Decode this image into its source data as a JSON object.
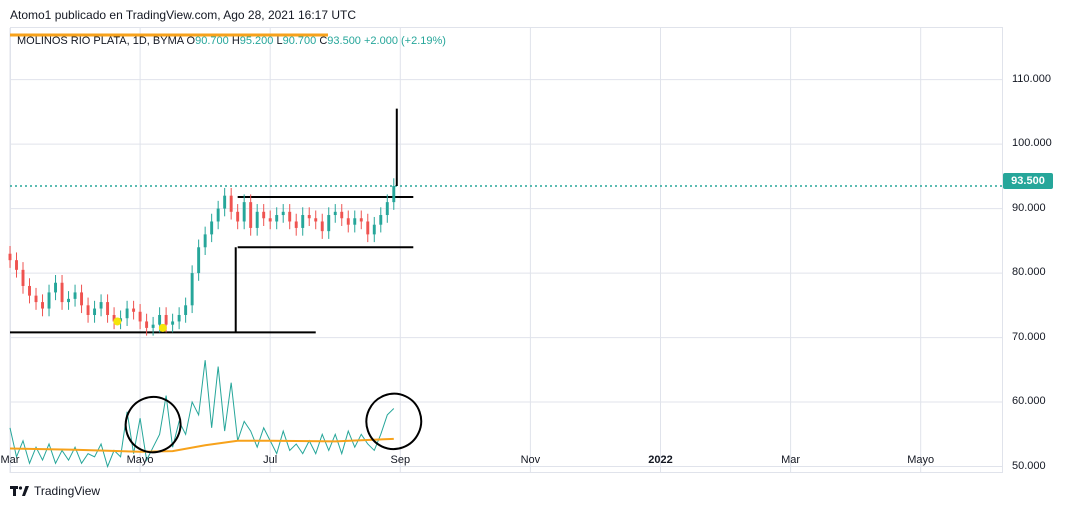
{
  "header": {
    "published_line": "Atomo1 publicado en TradingView.com, Ago 28, 2021 16:17 UTC"
  },
  "legend": {
    "symbol": "MOLINOS RIO PLATA, 1D, BYMA",
    "open_key": "O",
    "open": "90.700",
    "high_key": "H",
    "high": "95.200",
    "low_key": "L",
    "low": "90.700",
    "close_key": "C",
    "close": "93.500",
    "change": "+2.000 (+2.19%)"
  },
  "price_tag": "93.500",
  "footer": {
    "brand": "TradingView",
    "logo_icon": "tradingview-logo-icon"
  },
  "colors": {
    "up": "#26a69a",
    "down": "#ef5350",
    "volume_line": "#26a69a",
    "ma_line": "#f7a21b",
    "annotation": "#000000",
    "grid": "#e0e3eb",
    "signal_marker": "#f5e50a"
  },
  "chart_data": {
    "type": "line",
    "title": "MOLINOS RIO PLATA, 1D, BYMA",
    "y_ticks": [
      "110.000",
      "100.000",
      "90.000",
      "80.000",
      "70.000",
      "60.000",
      "50.000"
    ],
    "y_tick_values": [
      110,
      100,
      90,
      80,
      70,
      60,
      50
    ],
    "ylim": [
      49,
      118
    ],
    "x_ticks": [
      {
        "label": "Mar",
        "value": 2.0,
        "bold": false
      },
      {
        "label": "Mayo",
        "value": 4.0,
        "bold": false
      },
      {
        "label": "Jul",
        "value": 6.0,
        "bold": false
      },
      {
        "label": "Sep",
        "value": 8.0,
        "bold": false
      },
      {
        "label": "Nov",
        "value": 10.0,
        "bold": false
      },
      {
        "label": "2022",
        "value": 12.0,
        "bold": true
      },
      {
        "label": "Mar",
        "value": 14.0,
        "bold": false
      },
      {
        "label": "Mayo",
        "value": 16.0,
        "bold": false
      }
    ],
    "xlim": [
      2.0,
      17.25
    ],
    "last_price_line": 93.5,
    "price_series": {
      "name": "",
      "x": [
        2.0,
        2.1,
        2.2,
        2.3,
        2.4,
        2.5,
        2.6,
        2.7,
        2.8,
        2.9,
        3.0,
        3.1,
        3.2,
        3.3,
        3.4,
        3.5,
        3.6,
        3.7,
        3.8,
        3.9,
        4.0,
        4.1,
        4.2,
        4.3,
        4.4,
        4.5,
        4.6,
        4.7,
        4.8,
        4.9,
        5.0,
        5.1,
        5.2,
        5.3,
        5.4,
        5.5,
        5.6,
        5.7,
        5.8,
        5.9,
        6.0,
        6.1,
        6.2,
        6.3,
        6.4,
        6.5,
        6.6,
        6.7,
        6.8,
        6.9,
        7.0,
        7.1,
        7.2,
        7.3,
        7.4,
        7.5,
        7.6,
        7.7,
        7.8,
        7.9
      ],
      "close": [
        82.0,
        80.5,
        78.0,
        76.5,
        75.5,
        74.5,
        77.0,
        78.5,
        75.5,
        76.0,
        77.0,
        75.0,
        73.5,
        74.5,
        75.5,
        73.5,
        72.5,
        73.0,
        74.5,
        74.0,
        72.5,
        71.5,
        72.0,
        73.5,
        72.0,
        72.5,
        73.5,
        75.0,
        80.0,
        84.0,
        86.0,
        88.0,
        90.0,
        92.0,
        89.5,
        88.0,
        91.0,
        87.0,
        89.5,
        88.5,
        88.0,
        89.0,
        89.5,
        88.0,
        87.0,
        89.0,
        88.5,
        88.0,
        86.5,
        89.0,
        89.5,
        88.5,
        87.5,
        88.5,
        88.0,
        86.0,
        87.5,
        89.0,
        91.0,
        93.5
      ],
      "high_spike": 105.5
    },
    "oscillator_series": {
      "name": "",
      "x": [
        2.0,
        2.1,
        2.2,
        2.3,
        2.4,
        2.5,
        2.6,
        2.7,
        2.8,
        2.9,
        3.0,
        3.1,
        3.2,
        3.3,
        3.4,
        3.5,
        3.6,
        3.7,
        3.8,
        3.9,
        4.0,
        4.1,
        4.2,
        4.3,
        4.4,
        4.5,
        4.6,
        4.7,
        4.8,
        4.9,
        5.0,
        5.1,
        5.2,
        5.3,
        5.4,
        5.5,
        5.6,
        5.7,
        5.8,
        5.9,
        6.0,
        6.1,
        6.2,
        6.3,
        6.4,
        6.5,
        6.6,
        6.7,
        6.8,
        6.9,
        7.0,
        7.1,
        7.2,
        7.3,
        7.4,
        7.5,
        7.6,
        7.7,
        7.8,
        7.9
      ],
      "values": [
        56.0,
        51.5,
        54.0,
        50.5,
        53.0,
        51.0,
        53.5,
        50.5,
        52.5,
        51.0,
        53.0,
        50.5,
        52.0,
        51.5,
        53.5,
        50.0,
        52.5,
        51.5,
        58.5,
        52.0,
        57.5,
        51.0,
        53.0,
        55.0,
        61.0,
        53.0,
        57.0,
        55.0,
        60.0,
        58.0,
        66.5,
        56.0,
        65.5,
        55.5,
        63.0,
        54.0,
        57.0,
        55.5,
        53.0,
        56.0,
        54.0,
        52.0,
        55.5,
        52.5,
        53.5,
        52.0,
        54.0,
        52.0,
        55.0,
        52.5,
        55.0,
        52.0,
        55.5,
        53.0,
        55.0,
        53.5,
        52.5,
        55.0,
        58.0,
        59.0
      ]
    },
    "ma_series": {
      "name": "",
      "x": [
        2.0,
        3.0,
        4.0,
        4.5,
        5.0,
        5.5,
        6.0,
        7.0,
        7.9
      ],
      "values": [
        52.8,
        52.6,
        52.3,
        52.4,
        53.3,
        54.0,
        54.0,
        53.9,
        54.3
      ]
    },
    "annotations": {
      "support_line": {
        "x": [
          2.0,
          6.7
        ],
        "y": 70.8
      },
      "range_top": {
        "x": [
          5.5,
          8.2
        ],
        "y": 91.8
      },
      "range_bottom": {
        "x": [
          5.5,
          8.2
        ],
        "y": 84.0
      },
      "breakout_vertical": {
        "x": 5.47,
        "y": [
          70.8,
          84.0
        ]
      },
      "circles": [
        {
          "cx": 4.2,
          "cy": 56.5,
          "rx": 0.42,
          "ry": 4.3
        },
        {
          "cx": 7.9,
          "cy": 57.0,
          "rx": 0.42,
          "ry": 4.3
        }
      ],
      "signal_markers": [
        {
          "x": 3.65,
          "y": 72.5
        },
        {
          "x": 4.35,
          "y": 71.5
        }
      ]
    }
  }
}
